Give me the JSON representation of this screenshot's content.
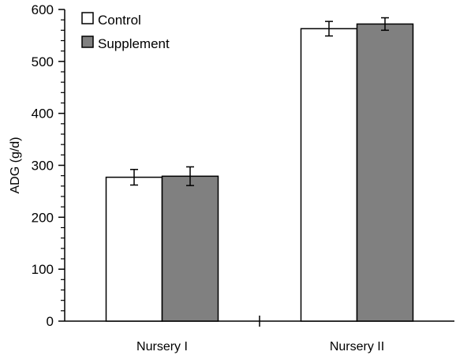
{
  "chart_data": {
    "type": "bar",
    "title": "",
    "xlabel": "",
    "ylabel": "ADG (g/d)",
    "ylim": [
      0,
      600
    ],
    "y_ticks": [
      0,
      100,
      200,
      300,
      400,
      500,
      600
    ],
    "y_tick_labels": [
      "0",
      "100",
      "200",
      "300",
      "400",
      "500",
      "600"
    ],
    "categories": [
      "Nursery I",
      "Nursery II"
    ],
    "series": [
      {
        "name": "Control",
        "values": [
          277,
          563
        ],
        "errors": [
          15,
          14
        ],
        "color": "#ffffff"
      },
      {
        "name": "Supplement",
        "values": [
          279,
          572
        ],
        "errors": [
          18,
          12
        ],
        "color": "#808080"
      }
    ],
    "legend_position": "top-left",
    "grid": false,
    "error_bars": true
  }
}
